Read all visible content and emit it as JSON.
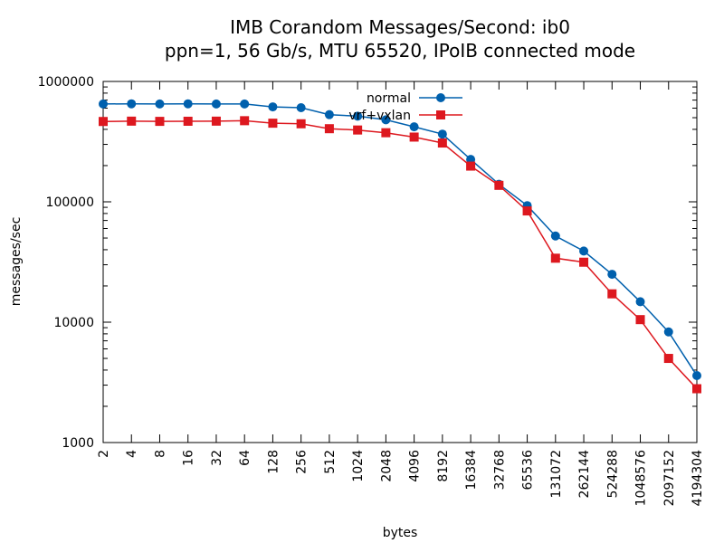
{
  "chart_data": {
    "type": "line",
    "title": "IMB Corandom Messages/Second: ib0",
    "subtitle": "ppn=1, 56 Gb/s, MTU 65520, IPoIB connected mode",
    "xlabel": "bytes",
    "ylabel": "messages/sec",
    "x_scale": "log2",
    "y_scale": "log10",
    "xlim": [
      2,
      4194304
    ],
    "ylim": [
      1000,
      1000000
    ],
    "x_tick_labels": [
      "2",
      "4",
      "8",
      "16",
      "32",
      "64",
      "128",
      "256",
      "512",
      "1024",
      "2048",
      "4096",
      "8192",
      "16384",
      "32768",
      "65536",
      "131072",
      "262144",
      "524288",
      "1048576",
      "2097152",
      "4194304"
    ],
    "y_tick_labels": [
      "1000",
      "10000",
      "100000",
      "1000000"
    ],
    "legend_position": "top-center",
    "grid": false,
    "x": [
      2,
      4,
      8,
      16,
      32,
      64,
      128,
      256,
      512,
      1024,
      2048,
      4096,
      8192,
      16384,
      32768,
      65536,
      131072,
      262144,
      524288,
      1048576,
      2097152,
      4194304
    ],
    "series": [
      {
        "name": "normal",
        "color": "#0060ad",
        "marker": "circle",
        "values": [
          650000,
          652000,
          650000,
          652000,
          650000,
          650000,
          615000,
          605000,
          530000,
          515000,
          480000,
          420000,
          365000,
          225000,
          140000,
          93000,
          52000,
          39000,
          25000,
          14800,
          8300,
          3600
        ]
      },
      {
        "name": "vrf+vxlan",
        "color": "#dd181f",
        "marker": "square",
        "values": [
          465000,
          468000,
          466000,
          467000,
          468000,
          472000,
          450000,
          445000,
          405000,
          395000,
          375000,
          345000,
          308000,
          198000,
          137000,
          84000,
          34000,
          31500,
          17200,
          10500,
          5000,
          2800
        ]
      }
    ]
  }
}
